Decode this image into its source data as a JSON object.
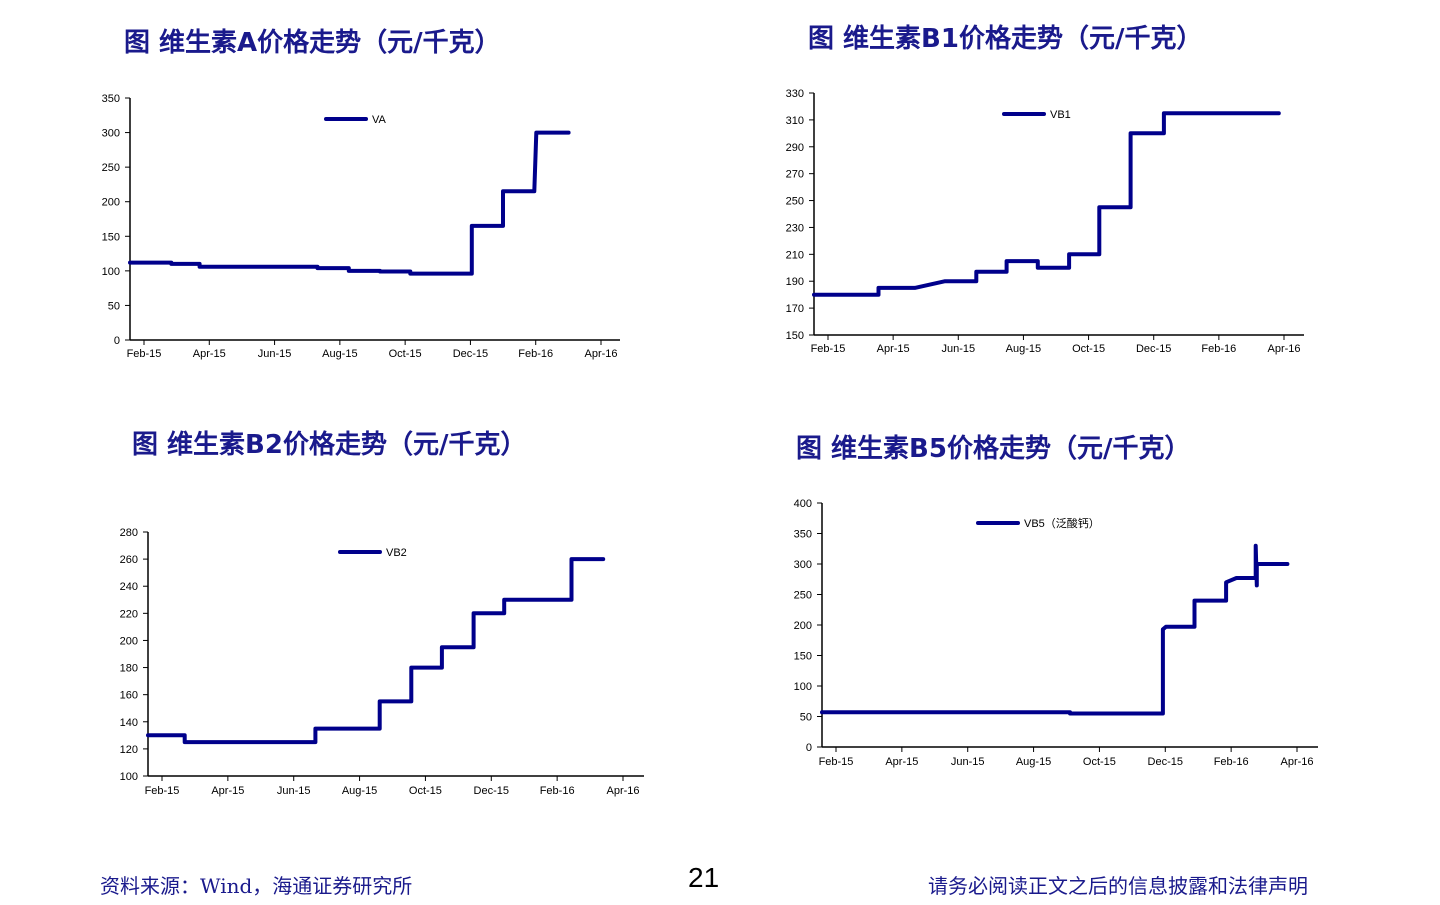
{
  "footer": {
    "source": "资料来源：Wind，海通证券研究所",
    "page_number": "21",
    "disclaimer": "请务必阅读正文之后的信息披露和法律声明"
  },
  "colors": {
    "line": "#00008B",
    "title": "#1a1a8c",
    "axis": "#000000"
  },
  "chart_data": [
    {
      "type": "line",
      "title": "图 维生素A价格走势（元/千克）",
      "categories": [
        "Feb-15",
        "Apr-15",
        "Jun-15",
        "Aug-15",
        "Oct-15",
        "Dec-15",
        "Feb-16",
        "Apr-16"
      ],
      "yticks": [
        "0",
        "50",
        "100",
        "150",
        "200",
        "250",
        "300",
        "350"
      ],
      "ylim": [
        0,
        350
      ],
      "xlim": [
        "2015-01-15",
        "2016-05-15"
      ],
      "legend_position": "top-center",
      "series": [
        {
          "name": "VA",
          "points": [
            [
              "2015-01-15",
              112
            ],
            [
              "2015-02-25",
              112
            ],
            [
              "2015-02-25",
              110
            ],
            [
              "2015-03-25",
              110
            ],
            [
              "2015-03-25",
              106
            ],
            [
              "2015-07-20",
              106
            ],
            [
              "2015-07-20",
              104
            ],
            [
              "2015-08-20",
              104
            ],
            [
              "2015-08-20",
              100
            ],
            [
              "2015-09-20",
              100
            ],
            [
              "2015-09-20",
              99
            ],
            [
              "2015-10-20",
              99
            ],
            [
              "2015-10-20",
              96
            ],
            [
              "2015-12-20",
              96
            ],
            [
              "2015-12-20",
              165
            ],
            [
              "2016-01-20",
              165
            ],
            [
              "2016-01-20",
              215
            ],
            [
              "2016-02-20",
              215
            ],
            [
              "2016-02-22",
              300
            ],
            [
              "2016-03-25",
              300
            ]
          ]
        }
      ]
    },
    {
      "type": "line",
      "title": "图 维生素B1价格走势（元/千克）",
      "categories": [
        "Feb-15",
        "Apr-15",
        "Jun-15",
        "Aug-15",
        "Oct-15",
        "Dec-15",
        "Feb-16",
        "Apr-16"
      ],
      "yticks": [
        "150",
        "170",
        "190",
        "210",
        "230",
        "250",
        "270",
        "290",
        "310",
        "330"
      ],
      "ylim": [
        150,
        330
      ],
      "xlim": [
        "2015-01-15",
        "2016-05-15"
      ],
      "legend_position": "top-center",
      "series": [
        {
          "name": "VB1",
          "points": [
            [
              "2015-01-15",
              180
            ],
            [
              "2015-03-20",
              180
            ],
            [
              "2015-03-20",
              185
            ],
            [
              "2015-04-25",
              185
            ],
            [
              "2015-05-25",
              190
            ],
            [
              "2015-06-25",
              190
            ],
            [
              "2015-06-25",
              197
            ],
            [
              "2015-07-25",
              197
            ],
            [
              "2015-07-25",
              205
            ],
            [
              "2015-08-25",
              205
            ],
            [
              "2015-08-25",
              200
            ],
            [
              "2015-09-25",
              200
            ],
            [
              "2015-09-25",
              210
            ],
            [
              "2015-10-25",
              210
            ],
            [
              "2015-10-25",
              245
            ],
            [
              "2015-11-25",
              245
            ],
            [
              "2015-11-25",
              300
            ],
            [
              "2015-12-28",
              300
            ],
            [
              "2015-12-28",
              315
            ],
            [
              "2016-04-20",
              315
            ]
          ]
        }
      ]
    },
    {
      "type": "line",
      "title": "图 维生素B2价格走势（元/千克）",
      "categories": [
        "Feb-15",
        "Apr-15",
        "Jun-15",
        "Aug-15",
        "Oct-15",
        "Dec-15",
        "Feb-16",
        "Apr-16"
      ],
      "yticks": [
        "100",
        "120",
        "140",
        "160",
        "180",
        "200",
        "220",
        "240",
        "260",
        "280"
      ],
      "ylim": [
        100,
        280
      ],
      "xlim": [
        "2015-01-15",
        "2016-05-15"
      ],
      "legend_position": "top-center",
      "series": [
        {
          "name": "VB2",
          "points": [
            [
              "2015-01-15",
              130
            ],
            [
              "2015-02-20",
              130
            ],
            [
              "2015-02-20",
              125
            ],
            [
              "2015-06-28",
              125
            ],
            [
              "2015-06-28",
              135
            ],
            [
              "2015-08-30",
              135
            ],
            [
              "2015-08-30",
              155
            ],
            [
              "2015-09-30",
              155
            ],
            [
              "2015-09-30",
              180
            ],
            [
              "2015-10-30",
              180
            ],
            [
              "2015-10-30",
              195
            ],
            [
              "2015-11-30",
              195
            ],
            [
              "2015-11-30",
              220
            ],
            [
              "2015-12-30",
              220
            ],
            [
              "2015-12-30",
              230
            ],
            [
              "2016-03-05",
              230
            ],
            [
              "2016-03-05",
              260
            ],
            [
              "2016-04-05",
              260
            ]
          ]
        }
      ]
    },
    {
      "type": "line",
      "title": "图 维生素B5价格走势（元/千克）",
      "categories": [
        "Feb-15",
        "Apr-15",
        "Jun-15",
        "Aug-15",
        "Oct-15",
        "Dec-15",
        "Feb-16",
        "Apr-16"
      ],
      "yticks": [
        "0",
        "50",
        "100",
        "150",
        "200",
        "250",
        "300",
        "350",
        "400"
      ],
      "ylim": [
        0,
        400
      ],
      "xlim": [
        "2015-01-15",
        "2016-05-15"
      ],
      "legend_position": "top-center",
      "series": [
        {
          "name": "VB5（泛酸钙）",
          "points": [
            [
              "2015-01-15",
              57
            ],
            [
              "2015-09-15",
              57
            ],
            [
              "2015-09-15",
              55
            ],
            [
              "2015-12-15",
              55
            ],
            [
              "2015-12-15",
              193
            ],
            [
              "2015-12-18",
              197
            ],
            [
              "2016-01-15",
              197
            ],
            [
              "2016-01-15",
              240
            ],
            [
              "2016-02-15",
              240
            ],
            [
              "2016-02-15",
              270
            ],
            [
              "2016-02-25",
              277
            ],
            [
              "2016-03-15",
              277
            ],
            [
              "2016-03-15",
              330
            ],
            [
              "2016-03-16",
              265
            ],
            [
              "2016-03-16",
              300
            ],
            [
              "2016-04-15",
              300
            ]
          ]
        }
      ]
    }
  ]
}
